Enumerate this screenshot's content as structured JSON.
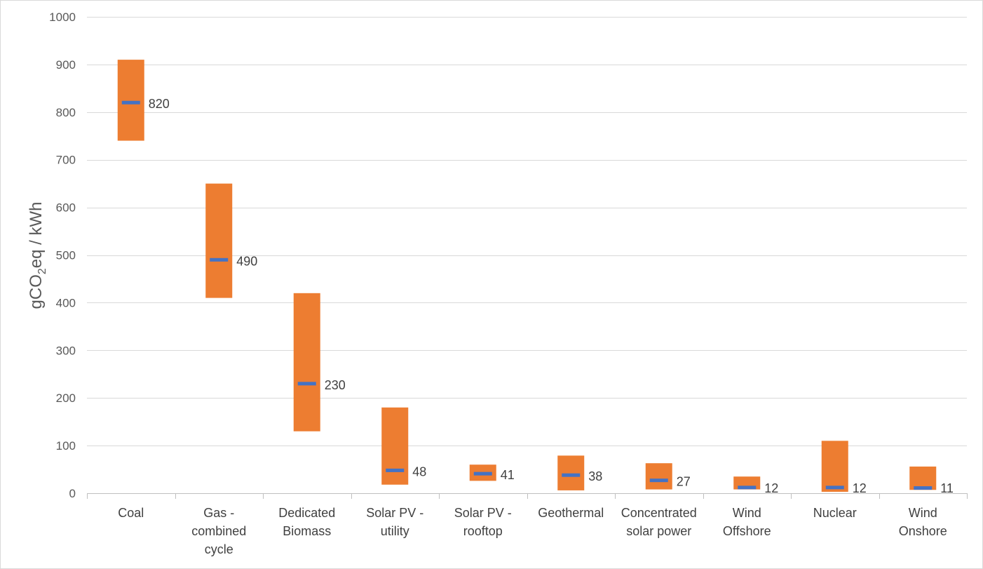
{
  "chart_data": {
    "type": "bar",
    "subtype": "floating-range-with-median",
    "title": "",
    "ylabel": "gCO2eq / kWh",
    "ylabel_parts": {
      "main": "gCO",
      "sub": "2",
      "rest": "eq / kWh"
    },
    "xlabel": "",
    "ylim": [
      0,
      1000
    ],
    "yticks": [
      0,
      100,
      200,
      300,
      400,
      500,
      600,
      700,
      800,
      900,
      1000
    ],
    "grid": true,
    "legend": "none",
    "categories": [
      [
        "Coal"
      ],
      [
        "Gas -",
        "combined",
        "cycle"
      ],
      [
        "Dedicated",
        "Biomass"
      ],
      [
        "Solar PV -",
        "utility"
      ],
      [
        "Solar PV -",
        "rooftop"
      ],
      [
        "Geothermal"
      ],
      [
        "Concentrated",
        "solar power"
      ],
      [
        "Wind",
        "Offshore"
      ],
      [
        "Nuclear"
      ],
      [
        "Wind",
        "Onshore"
      ]
    ],
    "series": [
      {
        "name": "min",
        "values": [
          740,
          410,
          130,
          18,
          26,
          6,
          8,
          8,
          3,
          7
        ]
      },
      {
        "name": "max",
        "values": [
          910,
          650,
          420,
          180,
          60,
          79,
          63,
          35,
          110,
          56
        ]
      },
      {
        "name": "median",
        "values": [
          820,
          490,
          230,
          48,
          41,
          38,
          27,
          12,
          12,
          11
        ]
      }
    ],
    "data_labels": [
      "820",
      "490",
      "230",
      "48",
      "41",
      "38",
      "27",
      "12",
      "12",
      "11"
    ],
    "colors": {
      "range": "#ed7d31",
      "median": "#4472c4",
      "grid": "#d9d9d9",
      "axis": "#bfbfbf"
    }
  }
}
